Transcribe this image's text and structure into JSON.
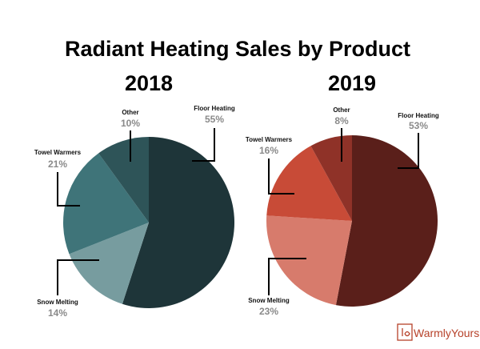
{
  "title": "Radiant Heating Sales by Product",
  "chart_data": [
    {
      "type": "pie",
      "title": "2018",
      "categories": [
        "Floor Heating",
        "Snow Melting",
        "Towel Warmers",
        "Other"
      ],
      "values": [
        55,
        14,
        21,
        10
      ],
      "labels": [
        "55%",
        "14%",
        "21%",
        "10%"
      ],
      "colors": [
        "#1e3539",
        "#779c9f",
        "#3f7479",
        "#2e5458"
      ]
    },
    {
      "type": "pie",
      "title": "2019",
      "categories": [
        "Floor Heating",
        "Snow Melting",
        "Towel Warmers",
        "Other"
      ],
      "values": [
        53,
        23,
        16,
        8
      ],
      "labels": [
        "53%",
        "23%",
        "16%",
        "8%"
      ],
      "colors": [
        "#5a1f1a",
        "#d77b6c",
        "#c84b37",
        "#8f3228"
      ]
    }
  ],
  "brand": {
    "name": "WarmlyYours",
    "logo_color": "#b7422a",
    "logo_icon": "warmlyyours-logo-icon"
  }
}
